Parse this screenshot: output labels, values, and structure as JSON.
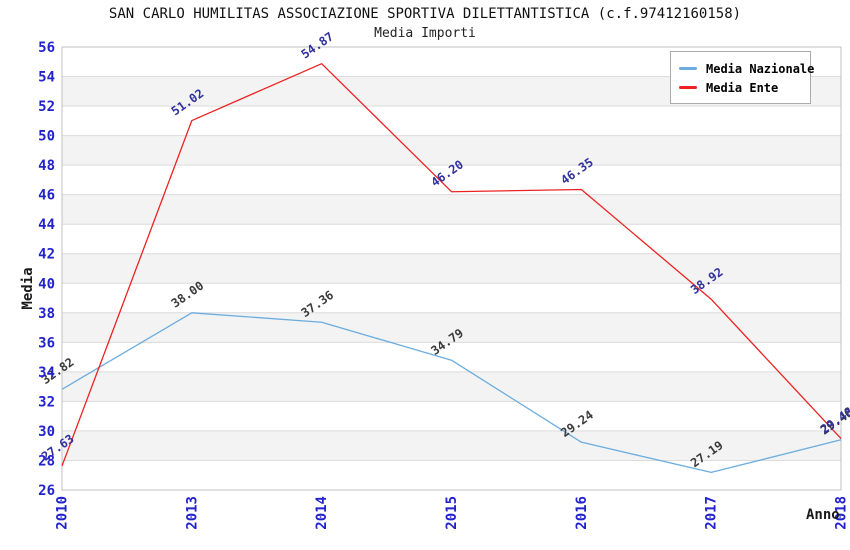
{
  "chart_data": {
    "type": "line",
    "title": "SAN CARLO HUMILITAS ASSOCIAZIONE SPORTIVA DILETTANTISTICA (c.f.97412160158)",
    "subtitle": "Media Importi",
    "x": [
      "2010",
      "2013",
      "2014",
      "2015",
      "2016",
      "2017",
      "2018"
    ],
    "xlabel": "Anno",
    "ylabel": "Media",
    "ylim": [
      26,
      56
    ],
    "y_tick_step": 2,
    "grid": true,
    "legend_position": "top-right",
    "series": [
      {
        "name": "Media Nazionale",
        "color": "#6baddf",
        "label_color": "#3b3b3b",
        "values": [
          32.82,
          38.0,
          37.36,
          34.79,
          29.24,
          27.19,
          29.4
        ]
      },
      {
        "name": "Media Ente",
        "color": "#ee2222",
        "label_color": "#32329f",
        "values": [
          27.63,
          51.02,
          54.87,
          46.2,
          46.35,
          38.92,
          29.48
        ]
      }
    ],
    "style": {
      "band_colors": [
        "#ffffff",
        "#f3f3f3"
      ],
      "grid_color": "#dcdcdc",
      "border_color": "#c0c0c0",
      "tick_label_color": "#2222cc",
      "axis_title_color": "#1a1a1a"
    }
  }
}
